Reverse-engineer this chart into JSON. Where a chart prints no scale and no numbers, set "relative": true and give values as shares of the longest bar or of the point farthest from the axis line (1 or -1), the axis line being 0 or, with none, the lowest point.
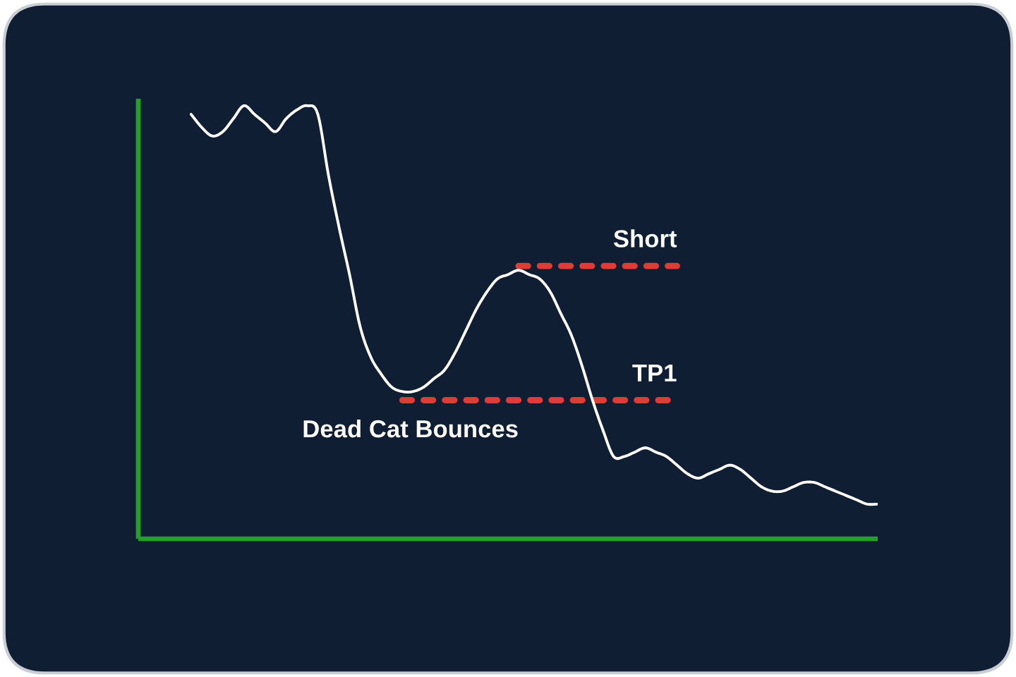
{
  "chart_data": {
    "type": "line",
    "relative": true,
    "line_style": "solid",
    "marker": "none",
    "categories": [
      null,
      null,
      null,
      null,
      null,
      null,
      null,
      null,
      null,
      null,
      null,
      null,
      null,
      null,
      null,
      null,
      null,
      null,
      null,
      null,
      null,
      null,
      null,
      null,
      null,
      null,
      null,
      null,
      null,
      null,
      null,
      null,
      null,
      null,
      null,
      null,
      null,
      null,
      null,
      null,
      null,
      null,
      null,
      null,
      null,
      null,
      null,
      null,
      null,
      null,
      null,
      null,
      null,
      null,
      null,
      null,
      null,
      null,
      null,
      null,
      null,
      null,
      null,
      null,
      null,
      null,
      null,
      null,
      null,
      null,
      null
    ],
    "series": [
      {
        "color": "#ffffff",
        "values": [
          null,
          null,
          null,
          null,
          null,
          0.98,
          0.95,
          0.93,
          0.94,
          0.97,
          1,
          0.98,
          0.96,
          0.94,
          0.97,
          0.99,
          1,
          0.98,
          0.84,
          0.72,
          0.61,
          0.49,
          0.42,
          0.38,
          0.35,
          0.34,
          0.34,
          0.35,
          0.37,
          0.39,
          0.43,
          0.48,
          0.53,
          0.57,
          0.6,
          0.61,
          0.62,
          0.61,
          0.6,
          0.57,
          0.52,
          0.47,
          0.4,
          0.32,
          0.25,
          0.19,
          0.19,
          0.2,
          0.21,
          0.2,
          0.19,
          0.17,
          0.15,
          0.14,
          0.15,
          0.16,
          0.17,
          0.16,
          0.14,
          0.12,
          0.11,
          0.11,
          0.12,
          0.13,
          0.13,
          0.12,
          0.11,
          0.1,
          0.09,
          0.08,
          0.08
        ]
      },
      {
        "name": "Short",
        "color": "#e23a35",
        "line_style": "dashed",
        "values": [
          null,
          null,
          null,
          null,
          null,
          null,
          null,
          null,
          null,
          null,
          null,
          null,
          null,
          null,
          null,
          null,
          null,
          null,
          null,
          null,
          null,
          null,
          null,
          null,
          null,
          null,
          null,
          null,
          null,
          null,
          null,
          null,
          null,
          null,
          null,
          null,
          0.63,
          0.63,
          0.63,
          0.63,
          0.63,
          0.63,
          0.63,
          0.63,
          0.63,
          0.63,
          0.63,
          0.63,
          0.63,
          0.63,
          0.63,
          0.63,
          null,
          null,
          null,
          null,
          null,
          null,
          null,
          null,
          null,
          null,
          null,
          null,
          null,
          null,
          null,
          null,
          null,
          null,
          null
        ]
      },
      {
        "name": "TP1",
        "color": "#e23a35",
        "line_style": "dashed",
        "values": [
          null,
          null,
          null,
          null,
          null,
          null,
          null,
          null,
          null,
          null,
          null,
          null,
          null,
          null,
          null,
          null,
          null,
          null,
          null,
          null,
          null,
          null,
          null,
          null,
          null,
          0.32,
          0.32,
          0.32,
          0.32,
          0.32,
          0.32,
          0.32,
          0.32,
          0.32,
          0.32,
          0.32,
          0.32,
          0.32,
          0.32,
          0.32,
          0.32,
          0.32,
          0.32,
          0.32,
          0.32,
          0.32,
          0.32,
          0.32,
          0.32,
          0.32,
          0.32,
          0.32,
          null,
          null,
          null,
          null,
          null,
          null,
          null,
          null,
          null,
          null,
          null,
          null,
          null,
          null,
          null,
          null,
          null,
          null,
          null
        ]
      }
    ],
    "annotations": [
      "Dead Cat Bounces"
    ]
  }
}
